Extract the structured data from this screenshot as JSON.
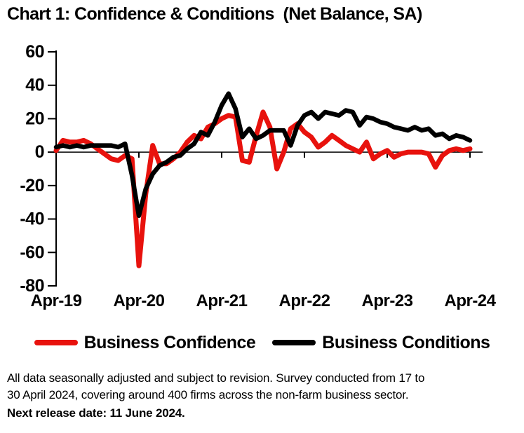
{
  "title": "Chart 1: Confidence & Conditions  (Net Balance, SA)",
  "legend": [
    {
      "label": "Business Confidence",
      "color": "#e8120d"
    },
    {
      "label": "Business Conditions",
      "color": "#000000"
    }
  ],
  "footnote": {
    "line1": "All data seasonally adjusted and subject to revision. Survey conducted from 17 to",
    "line2": "30 April 2024, covering around 400 firms across the non-farm business sector.",
    "bold": "Next release date: 11 June 2024."
  },
  "chart_data": {
    "type": "line",
    "title": "Chart 1: Confidence & Conditions (Net Balance, SA)",
    "xlabel": "",
    "ylabel": "",
    "ylim": [
      -80,
      60
    ],
    "ytick_labels": [
      "60",
      "40",
      "20",
      "0",
      "-20",
      "-40",
      "-60",
      "-80"
    ],
    "yticks": [
      60,
      40,
      20,
      0,
      -20,
      -40,
      -60,
      -80
    ],
    "xtick_labels": [
      "Apr-19",
      "Apr-20",
      "Apr-21",
      "Apr-22",
      "Apr-23",
      "Apr-24"
    ],
    "grid": false,
    "zero_line": true,
    "legend_position": "bottom",
    "x": [
      "Apr-19",
      "May-19",
      "Jun-19",
      "Jul-19",
      "Aug-19",
      "Sep-19",
      "Oct-19",
      "Nov-19",
      "Dec-19",
      "Jan-20",
      "Feb-20",
      "Mar-20",
      "Apr-20",
      "May-20",
      "Jun-20",
      "Jul-20",
      "Aug-20",
      "Sep-20",
      "Oct-20",
      "Nov-20",
      "Dec-20",
      "Jan-21",
      "Feb-21",
      "Mar-21",
      "Apr-21",
      "May-21",
      "Jun-21",
      "Jul-21",
      "Aug-21",
      "Sep-21",
      "Oct-21",
      "Nov-21",
      "Dec-21",
      "Jan-22",
      "Feb-22",
      "Mar-22",
      "Apr-22",
      "May-22",
      "Jun-22",
      "Jul-22",
      "Aug-22",
      "Sep-22",
      "Oct-22",
      "Nov-22",
      "Dec-22",
      "Jan-23",
      "Feb-23",
      "Mar-23",
      "Apr-23",
      "May-23",
      "Jun-23",
      "Jul-23",
      "Aug-23",
      "Sep-23",
      "Oct-23",
      "Nov-23",
      "Dec-23",
      "Jan-24",
      "Feb-24",
      "Mar-24",
      "Apr-24"
    ],
    "series": [
      {
        "name": "Business Confidence",
        "color": "#e8120d",
        "values": [
          1,
          7,
          6,
          6,
          7,
          5,
          2,
          -1,
          -4,
          -5,
          -2,
          -4,
          -68,
          -25,
          4,
          -7,
          -7,
          -4,
          0,
          6,
          10,
          8,
          15,
          17,
          20,
          22,
          21,
          -5,
          -6,
          10,
          24,
          15,
          -10,
          0,
          14,
          17,
          12,
          9,
          3,
          6,
          10,
          7,
          4,
          2,
          0,
          6,
          -4,
          -1,
          1,
          -3,
          -1,
          0,
          0,
          0,
          -1,
          -9,
          -2,
          1,
          2,
          1,
          2
        ]
      },
      {
        "name": "Business Conditions",
        "color": "#000000",
        "values": [
          3,
          4,
          3,
          4,
          3,
          4,
          4,
          4,
          4,
          3,
          5,
          -14,
          -38,
          -22,
          -13,
          -8,
          -6,
          -3,
          -2,
          2,
          5,
          12,
          10,
          18,
          28,
          35,
          26,
          9,
          14,
          8,
          10,
          13,
          13,
          13,
          4,
          16,
          22,
          24,
          20,
          24,
          23,
          22,
          25,
          24,
          16,
          21,
          20,
          18,
          17,
          15,
          14,
          13,
          15,
          13,
          14,
          10,
          11,
          8,
          10,
          9,
          7
        ]
      }
    ]
  }
}
